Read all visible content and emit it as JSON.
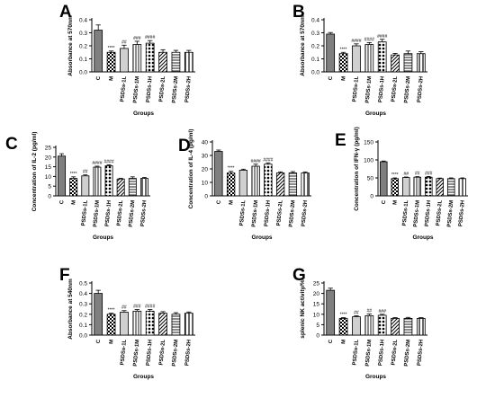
{
  "colors": {
    "bar_outline": "#000000",
    "axis": "#000000",
    "error_bar": "#000000"
  },
  "chart_data": [
    {
      "panel": "A",
      "type": "bar",
      "ylabel": "Absorbance at 570nm",
      "xlabel": "Groups",
      "categories": [
        "C",
        "M",
        "PSDSs-1L",
        "PSDSs-1M",
        "PSDSs-1H",
        "PSDSs-2L",
        "PSDSs-2M",
        "PSDSs-2H"
      ],
      "values": [
        0.32,
        0.15,
        0.18,
        0.21,
        0.22,
        0.15,
        0.15,
        0.15
      ],
      "errors": [
        0.04,
        0.01,
        0.025,
        0.025,
        0.02,
        0.02,
        0.015,
        0.015
      ],
      "annotations": [
        "",
        "****",
        "##",
        "###",
        "####",
        "",
        "",
        ""
      ],
      "ylim": [
        0,
        0.4
      ],
      "yticks": [
        "0.0",
        "0.1",
        "0.2",
        "0.3",
        "0.4"
      ]
    },
    {
      "panel": "B",
      "type": "bar",
      "ylabel": "Absorbance at 570nm",
      "xlabel": "Groups",
      "categories": [
        "C",
        "M",
        "PSDSs-1L",
        "PSDSs-1M",
        "PSDSs-1H",
        "PSDSs-2L",
        "PSDSs-2M",
        "PSDSs-2H"
      ],
      "values": [
        0.29,
        0.14,
        0.2,
        0.21,
        0.23,
        0.13,
        0.14,
        0.14
      ],
      "errors": [
        0.012,
        0.01,
        0.015,
        0.015,
        0.02,
        0.012,
        0.02,
        0.015
      ],
      "annotations": [
        "",
        "****",
        "####",
        "####",
        "####",
        "",
        "",
        ""
      ],
      "ylim": [
        0,
        0.4
      ],
      "yticks": [
        "0.0",
        "0.1",
        "0.2",
        "0.3",
        "0.4"
      ]
    },
    {
      "panel": "C",
      "type": "bar",
      "ylabel": "Concentration of IL-2 (pg/ml)",
      "xlabel": "Groups",
      "categories": [
        "C",
        "M",
        "PSDSs-1L",
        "PSDSs-1M",
        "PSDSs-1H",
        "PSDSs-2L",
        "PSDSs-2M",
        "PSDSs-2H"
      ],
      "values": [
        20.5,
        9,
        10.3,
        14.8,
        15.5,
        8.7,
        9,
        9
      ],
      "errors": [
        1.2,
        0.8,
        0.5,
        0.5,
        0.5,
        0.4,
        0.8,
        0.5
      ],
      "annotations": [
        "",
        "****",
        "##",
        "####",
        "####",
        "",
        "",
        ""
      ],
      "ylim": [
        0,
        25
      ],
      "yticks": [
        "0",
        "5",
        "10",
        "15",
        "20",
        "25"
      ]
    },
    {
      "panel": "D",
      "type": "bar",
      "ylabel": "Concentration of IL-4 (pg/ml)",
      "xlabel": "Groups",
      "categories": [
        "C",
        "M",
        "PSDSs-1L",
        "PSDSs-1M",
        "PSDSs-1H",
        "PSDSs-2L",
        "PSDSs-2M",
        "PSDSs-2H"
      ],
      "values": [
        33,
        17,
        19,
        22,
        23.5,
        17,
        17,
        17
      ],
      "errors": [
        1,
        1.2,
        0.8,
        1.5,
        1,
        0.8,
        1,
        0.8
      ],
      "annotations": [
        "",
        "****",
        "",
        "####",
        "####",
        "",
        "",
        ""
      ],
      "ylim": [
        0,
        40
      ],
      "yticks": [
        "0",
        "10",
        "20",
        "30",
        "40"
      ]
    },
    {
      "panel": "E",
      "type": "bar",
      "ylabel": "Concentration of IFN-γ (pg/ml)",
      "xlabel": "Groups",
      "categories": [
        "C",
        "M",
        "PSDSs-1L",
        "PSDSs-1M",
        "PSDSs-1H",
        "PSDSs-2L",
        "PSDSs-2M",
        "PSDSs-2H"
      ],
      "values": [
        95,
        48,
        51,
        52,
        52,
        48,
        48,
        48
      ],
      "errors": [
        2,
        2,
        1.5,
        1.5,
        2,
        1.5,
        2,
        2
      ],
      "annotations": [
        "",
        "****",
        "##",
        "##",
        "###",
        "",
        "",
        ""
      ],
      "ylim": [
        0,
        150
      ],
      "yticks": [
        "0",
        "50",
        "100",
        "150"
      ]
    },
    {
      "panel": "F",
      "type": "bar",
      "ylabel": "Absorbance at 540nm",
      "xlabel": "Groups",
      "categories": [
        "C",
        "M",
        "PSDSs-1L",
        "PSDSs-1M",
        "PSDSs-1H",
        "PSDSs-2L",
        "PSDSs-2M",
        "PSDSs-2H"
      ],
      "values": [
        0.4,
        0.2,
        0.22,
        0.23,
        0.23,
        0.21,
        0.2,
        0.21
      ],
      "errors": [
        0.03,
        0.01,
        0.015,
        0.015,
        0.015,
        0.015,
        0.015,
        0.012
      ],
      "annotations": [
        "",
        "****",
        "##",
        "###",
        "####",
        "",
        "",
        ""
      ],
      "ylim": [
        0,
        0.5
      ],
      "yticks": [
        "0.0",
        "0.1",
        "0.2",
        "0.3",
        "0.4",
        "0.5"
      ]
    },
    {
      "panel": "G",
      "type": "bar",
      "ylabel": "splenic NK activity/%",
      "xlabel": "Groups",
      "categories": [
        "C",
        "M",
        "PSDSs-1L",
        "PSDSs-1M",
        "PSDSs-1H",
        "PSDSs-2L",
        "PSDSs-2M",
        "PSDSs-2H"
      ],
      "values": [
        21.5,
        8,
        8.8,
        9.3,
        9.5,
        8,
        8,
        8
      ],
      "errors": [
        1,
        0.4,
        0.5,
        0.8,
        0.5,
        0.4,
        0.5,
        0.4
      ],
      "annotations": [
        "",
        "****",
        "##",
        "##",
        "###",
        "",
        "",
        ""
      ],
      "ylim": [
        0,
        25
      ],
      "yticks": [
        "0",
        "5",
        "10",
        "15",
        "20",
        "25"
      ]
    }
  ]
}
